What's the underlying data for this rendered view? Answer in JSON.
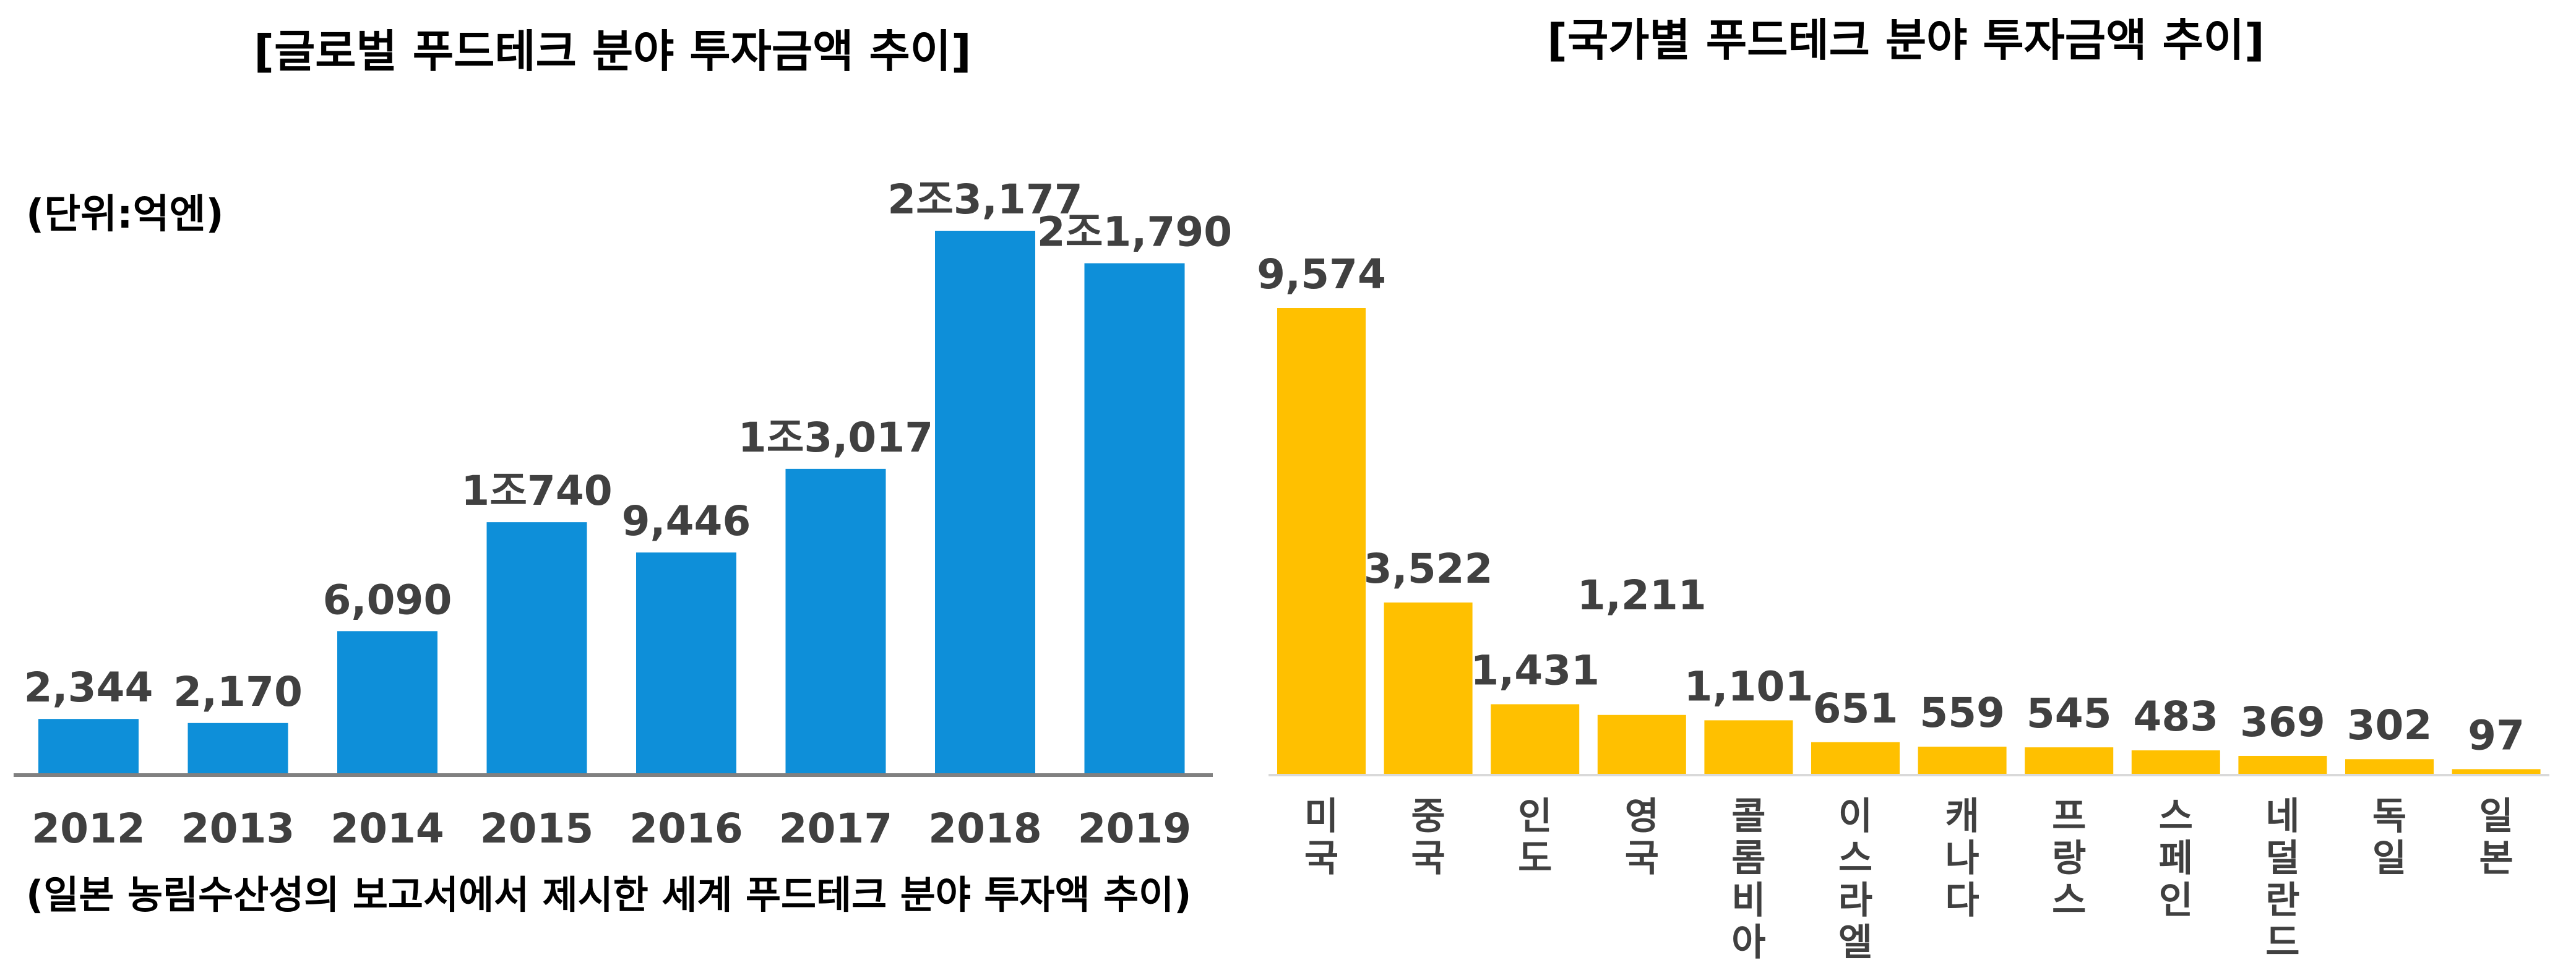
{
  "chart_data": [
    {
      "type": "bar",
      "title": "[글로벌 푸드테크 분야 투자금액 추이]",
      "unit_label": "(단위:억엔)",
      "categories": [
        "2012",
        "2013",
        "2014",
        "2015",
        "2016",
        "2017",
        "2018",
        "2019"
      ],
      "values": [
        2344,
        2170,
        6090,
        10740,
        9446,
        13017,
        23177,
        21790
      ],
      "data_labels": [
        "2,344",
        "2,170",
        "6,090",
        "1조740",
        "9,446",
        "1조3,017",
        "2조3,177",
        "2조1,790"
      ],
      "ylim": [
        0,
        23177
      ],
      "color": "#0E8FD9",
      "source_note": "(일본 농림수산성의 보고서에서 제시한 세계 푸드테크 분야 투자액 추이)"
    },
    {
      "type": "bar",
      "title": "[국가별 푸드테크 분야 투자금액 추이]",
      "categories": [
        "미국",
        "중국",
        "인도",
        "영국",
        "콜롬비아",
        "이스라엘",
        "캐나다",
        "프랑스",
        "스페인",
        "네덜란드",
        "독일",
        "일본"
      ],
      "values": [
        9574,
        3522,
        1431,
        1211,
        1101,
        651,
        559,
        545,
        483,
        369,
        302,
        97
      ],
      "data_labels": [
        "9,574",
        "3,522",
        "1,431",
        "1,211",
        "1,101",
        "651",
        "559",
        "545",
        "483",
        "369",
        "302",
        "97"
      ],
      "ylim": [
        0,
        9574
      ],
      "color": "#FFC000"
    }
  ]
}
